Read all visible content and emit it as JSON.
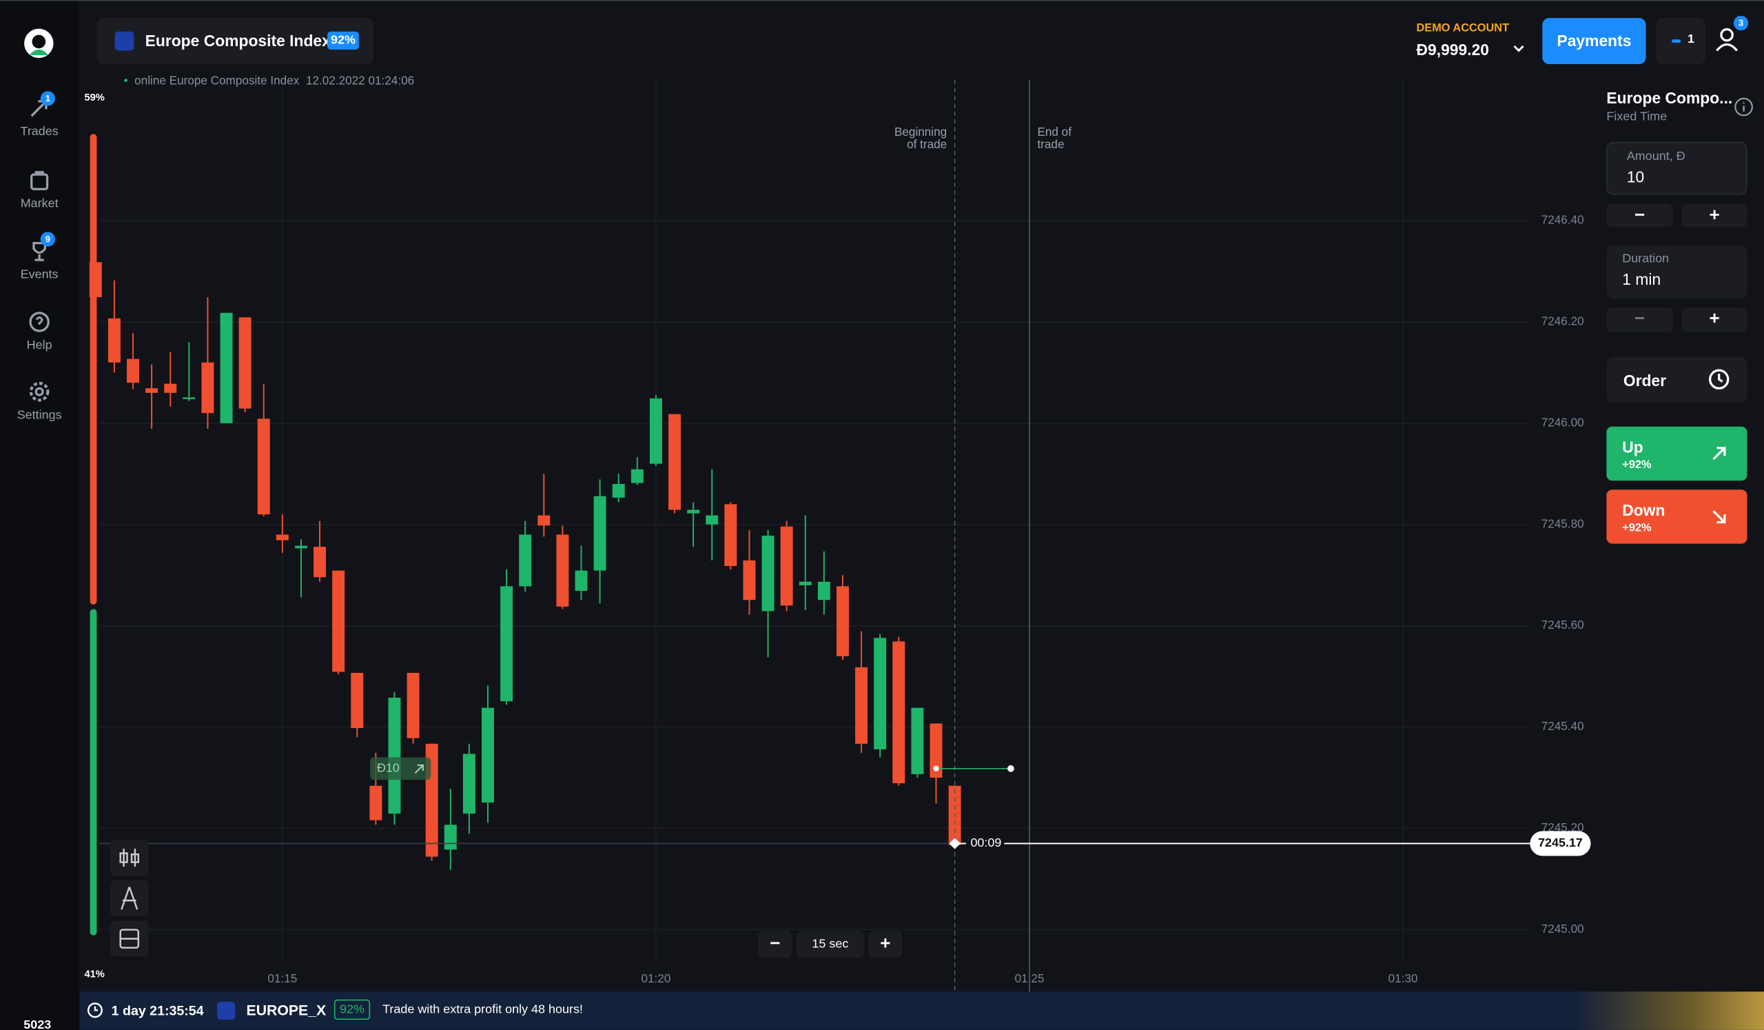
{
  "header": {
    "asset": "Europe Composite Index",
    "payout": "92%",
    "status": "online Europe Composite Index",
    "timestamp": "12.02.2022 01:24:06",
    "account_type": "DEMO ACCOUNT",
    "balance": "Đ9,999.20",
    "payments": "Payments",
    "open_count": 1,
    "notifications": 3
  },
  "sidebar": {
    "items": [
      {
        "label": "Trades",
        "badge": 1
      },
      {
        "label": "Market"
      },
      {
        "label": "Events",
        "badge": 9
      },
      {
        "label": "Help"
      },
      {
        "label": "Settings"
      }
    ],
    "user_id": "5023"
  },
  "chart_data": {
    "type": "candlestick",
    "up_color": "#1fb56a",
    "down_color": "#f0502f",
    "grid": true,
    "x": [
      72.5,
      72.75,
      73,
      73.25,
      73.5,
      73.75,
      74,
      74.25,
      74.5,
      74.75,
      75,
      75.25,
      75.5,
      75.75,
      76,
      76.25,
      76.5,
      76.75,
      77,
      77.25,
      77.5,
      77.75,
      78,
      78.25,
      78.5,
      78.75,
      79,
      79.25,
      79.5,
      79.75,
      80,
      80.25,
      80.5,
      80.75,
      81,
      81.25,
      81.5,
      81.75,
      82,
      82.25,
      82.5,
      82.75,
      83,
      83.25,
      83.5,
      83.75,
      84
    ],
    "open": [
      7246.318,
      7246.207,
      7246.127,
      7246.069,
      7246.078,
      7246.049,
      7246.12,
      7246.0,
      7246.209,
      7246.009,
      7245.78,
      7245.753,
      7245.756,
      7245.709,
      7245.507,
      7245.284,
      7245.229,
      7245.507,
      7245.367,
      7245.158,
      7245.229,
      7245.251,
      7245.451,
      7245.678,
      7245.818,
      7245.78,
      7245.669,
      7245.709,
      7245.853,
      7245.882,
      7245.92,
      7246.018,
      7245.822,
      7245.8,
      7245.84,
      7245.729,
      7245.629,
      7245.796,
      7245.68,
      7245.651,
      7245.678,
      7245.518,
      7245.356,
      7245.569,
      7245.307,
      7245.407,
      7245.284
    ],
    "high": [
      7246.356,
      7246.282,
      7246.178,
      7246.116,
      7246.14,
      7246.16,
      7246.249,
      7246.218,
      7246.209,
      7246.078,
      7245.82,
      7245.771,
      7245.807,
      7245.709,
      7245.507,
      7245.349,
      7245.469,
      7245.507,
      7245.367,
      7245.278,
      7245.367,
      7245.482,
      7245.711,
      7245.807,
      7245.9,
      7245.798,
      7245.758,
      7245.889,
      7245.9,
      7245.933,
      7246.056,
      7246.018,
      7245.844,
      7245.909,
      7245.844,
      7245.789,
      7245.789,
      7245.807,
      7245.818,
      7245.747,
      7245.7,
      7245.589,
      7245.584,
      7245.578,
      7245.438,
      7245.407,
      7245.284
    ],
    "low": [
      7246.244,
      7246.1,
      7246.067,
      7245.989,
      7246.033,
      7246.044,
      7245.989,
      7246.0,
      7246.022,
      7245.816,
      7245.744,
      7245.656,
      7245.687,
      7245.504,
      7245.38,
      7245.207,
      7245.207,
      7245.367,
      7245.136,
      7245.118,
      7245.189,
      7245.211,
      7245.444,
      7245.667,
      7245.776,
      7245.633,
      7245.651,
      7245.644,
      7245.844,
      7245.878,
      7245.916,
      7245.822,
      7245.756,
      7245.729,
      7245.711,
      7245.622,
      7245.538,
      7245.629,
      7245.631,
      7245.622,
      7245.533,
      7245.349,
      7245.34,
      7245.284,
      7245.3,
      7245.249,
      7245.162
    ],
    "close": [
      7246.249,
      7246.12,
      7246.08,
      7246.06,
      7246.06,
      7246.051,
      7246.02,
      7246.218,
      7246.029,
      7245.82,
      7245.769,
      7245.758,
      7245.696,
      7245.509,
      7245.398,
      7245.216,
      7245.458,
      7245.378,
      7245.144,
      7245.207,
      7245.347,
      7245.438,
      7245.678,
      7245.78,
      7245.798,
      7245.638,
      7245.709,
      7245.856,
      7245.88,
      7245.909,
      7246.049,
      7245.829,
      7245.829,
      7245.818,
      7245.718,
      7245.651,
      7245.778,
      7245.64,
      7245.687,
      7245.687,
      7245.54,
      7245.367,
      7245.576,
      7245.289,
      7245.438,
      7245.3,
      7245.167
    ],
    "xlim": [
      72.545,
      91.7
    ],
    "xticks": [
      {
        "value": 75,
        "label": "01:15"
      },
      {
        "value": 80,
        "label": "01:20"
      },
      {
        "value": 85,
        "label": "01:25"
      },
      {
        "value": 90,
        "label": "01:30"
      }
    ],
    "ylim": [
      7244.933,
      7246.678
    ],
    "yticks": [
      {
        "value": 7245,
        "label": "7245.00"
      },
      {
        "value": 7245.2,
        "label": "7245.20"
      },
      {
        "value": 7245.4,
        "label": "7245.40"
      },
      {
        "value": 7245.6,
        "label": "7245.60"
      },
      {
        "value": 7245.8,
        "label": "7245.80"
      },
      {
        "value": 7246,
        "label": "7246.00"
      },
      {
        "value": 7246.2,
        "label": "7246.20"
      },
      {
        "value": 7246.4,
        "label": "7246.40"
      }
    ],
    "current_price": 7245.17,
    "countdown": "00:09",
    "trade": {
      "label": "Đ10",
      "price": 7245.318,
      "start": 83.75,
      "end": 84.75
    },
    "trade_start": {
      "x": 84,
      "label": [
        "Beginning",
        "of trade"
      ]
    },
    "trade_end": {
      "x": 85,
      "label": [
        "End of",
        "trade"
      ]
    },
    "sentiment": {
      "values": [
        59,
        41
      ],
      "value_labels": [
        "59%",
        "41%"
      ],
      "colors": [
        "#f0502f",
        "#1fb56a"
      ]
    },
    "timeframe": "15 sec"
  },
  "trade_panel": {
    "asset": "Europe Compo...",
    "mode": "Fixed Time",
    "amount_label": "Amount, Đ",
    "amount": "10",
    "duration_label": "Duration",
    "duration": "1 min",
    "order": "Order",
    "up": {
      "label": "Up",
      "payout": "+92%"
    },
    "down": {
      "label": "Down",
      "payout": "+92%"
    }
  },
  "footer": {
    "timer": "1 day 21:35:54",
    "symbol": "EUROPE_X",
    "payout": "92%",
    "promo": "Trade with extra profit only 48 hours!"
  }
}
